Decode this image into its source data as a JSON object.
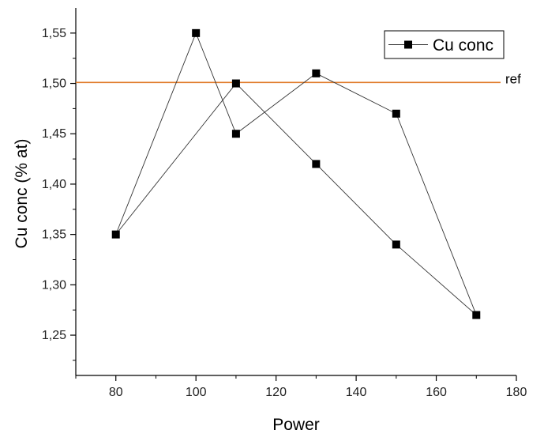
{
  "chart_data": {
    "type": "line",
    "xlabel": "Power",
    "ylabel": "Cu conc (% at)",
    "xlim": [
      70,
      180
    ],
    "ylim": [
      1.21,
      1.575
    ],
    "x_ticks": [
      80,
      100,
      120,
      140,
      160,
      180
    ],
    "x_tick_labels": [
      "80",
      "100",
      "120",
      "140",
      "160",
      "180"
    ],
    "y_ticks": [
      1.25,
      1.3,
      1.35,
      1.4,
      1.45,
      1.5,
      1.55
    ],
    "y_tick_labels": [
      "1,25",
      "1,30",
      "1,35",
      "1,40",
      "1,45",
      "1,50",
      "1,55"
    ],
    "grid": false,
    "legend_position": "top-right",
    "series": [
      {
        "name": "Cu conc",
        "marker": "square",
        "color": "#000000",
        "points": [
          {
            "x": 80,
            "y": 1.35
          },
          {
            "x": 100,
            "y": 1.55
          },
          {
            "x": 110,
            "y": 1.45
          },
          {
            "x": 130,
            "y": 1.51
          },
          {
            "x": 150,
            "y": 1.47
          },
          {
            "x": 170,
            "y": 1.27
          },
          {
            "x": 150,
            "y": 1.34
          },
          {
            "x": 130,
            "y": 1.42
          },
          {
            "x": 110,
            "y": 1.5
          },
          {
            "x": 80,
            "y": 1.35
          }
        ]
      }
    ],
    "reference_line": {
      "label": "ref",
      "y": 1.501,
      "color": "#E07B2A"
    }
  }
}
